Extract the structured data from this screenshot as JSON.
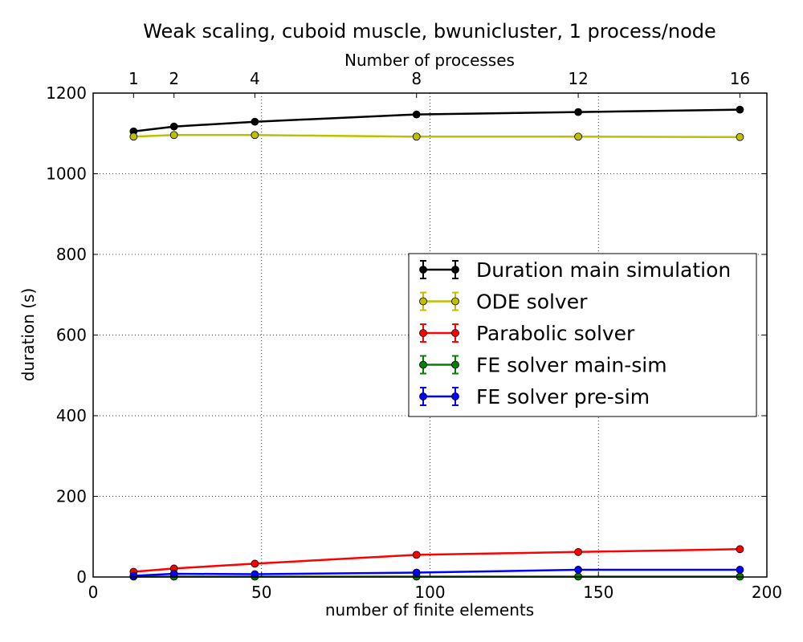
{
  "chart_data": {
    "type": "line",
    "title": "Weak scaling, cuboid muscle, bwunicluster, 1 process/node",
    "xlabel": "number of finite elements",
    "ylabel": "duration (s)",
    "x2label": "Number of processes",
    "xlim": [
      0,
      200
    ],
    "ylim": [
      0,
      1200
    ],
    "x_ticks": [
      0,
      50,
      100,
      150,
      200
    ],
    "x_tick_labels": [
      "0",
      "50",
      "100",
      "150",
      "200"
    ],
    "y_ticks": [
      0,
      200,
      400,
      600,
      800,
      1000,
      1200
    ],
    "y_tick_labels": [
      "0",
      "200",
      "400",
      "600",
      "800",
      "1000",
      "1200"
    ],
    "x2_ticks": [
      12,
      24,
      48,
      96,
      144,
      192
    ],
    "x2_tick_labels": [
      "1",
      "2",
      "4",
      "8",
      "12",
      "16"
    ],
    "grid": true,
    "legend_position": "center-right",
    "x": [
      12,
      24,
      48,
      96,
      144,
      192
    ],
    "series": [
      {
        "name": "Duration main simulation",
        "color": "#000000",
        "values": [
          1105,
          1117,
          1129,
          1147,
          1153,
          1159
        ]
      },
      {
        "name": "ODE solver",
        "color": "#bfbf00",
        "values": [
          1092,
          1096,
          1096,
          1092,
          1092,
          1091
        ]
      },
      {
        "name": "Parabolic solver",
        "color": "#ff0000",
        "values": [
          13,
          21,
          33,
          55,
          62,
          69
        ]
      },
      {
        "name": "FE solver main-sim",
        "color": "#008000",
        "values": [
          1,
          1,
          1,
          1,
          1,
          1
        ]
      },
      {
        "name": "FE solver pre-sim",
        "color": "#0000ff",
        "values": [
          3,
          8,
          7,
          11,
          18,
          18
        ]
      }
    ]
  }
}
